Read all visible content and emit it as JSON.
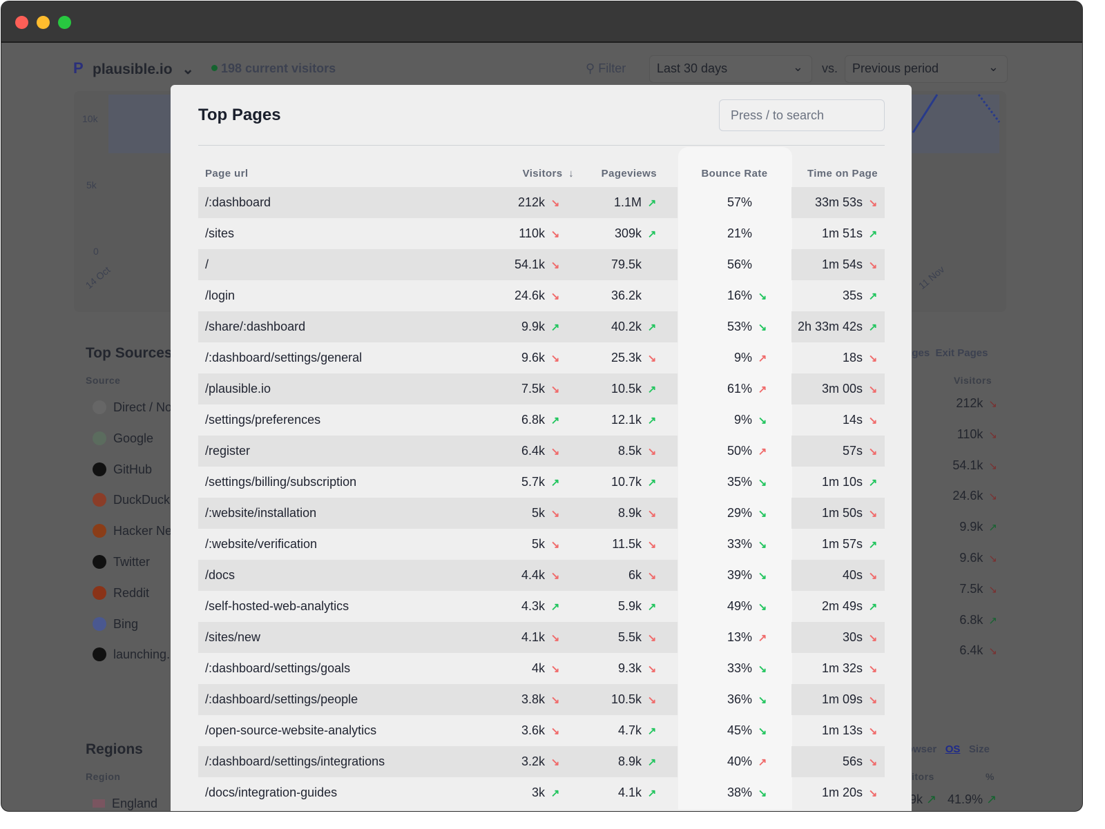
{
  "header": {
    "site": "plausible.io",
    "current_visitors": "198 current visitors",
    "filter": "Filter",
    "period": "Last 30 days",
    "vs": "vs.",
    "comparison": "Previous period"
  },
  "chart": {
    "y_ticks": [
      "10k",
      "5k",
      "0"
    ],
    "x_ticks": [
      "14 Oct",
      "11 Nov"
    ]
  },
  "sources": {
    "title": "Top Sources",
    "col": "Source",
    "items": [
      {
        "label": "Direct / No",
        "icon": "link-icon"
      },
      {
        "label": "Google",
        "icon": "google-icon"
      },
      {
        "label": "GitHub",
        "icon": "github-icon"
      },
      {
        "label": "DuckDuck",
        "icon": "duckduckgo-icon"
      },
      {
        "label": "Hacker Ne",
        "icon": "hacker-news-icon"
      },
      {
        "label": "Twitter",
        "icon": "x-icon"
      },
      {
        "label": "Reddit",
        "icon": "reddit-icon"
      },
      {
        "label": "Bing",
        "icon": "bing-icon"
      },
      {
        "label": "launching.",
        "icon": "launching-icon"
      }
    ]
  },
  "pages": {
    "tabs": [
      "Pages",
      "Exit Pages"
    ],
    "col": "Visitors",
    "values": [
      {
        "v": "212k",
        "t": "down"
      },
      {
        "v": "110k",
        "t": "down"
      },
      {
        "v": "54.1k",
        "t": "down"
      },
      {
        "v": "24.6k",
        "t": "down"
      },
      {
        "v": "9.9k",
        "t": "up"
      },
      {
        "v": "9.6k",
        "t": "down"
      },
      {
        "v": "7.5k",
        "t": "down"
      },
      {
        "v": "6.8k",
        "t": "up"
      },
      {
        "v": "6.4k",
        "t": "down"
      }
    ]
  },
  "regions": {
    "title": "Regions",
    "col": "Region",
    "first": "England",
    "pct_value": "41.9%",
    "visitors_partial": "9k"
  },
  "devices": {
    "tabs": [
      "rowser",
      "OS",
      "Size"
    ],
    "col_visitors": "itors",
    "col_pct": "%"
  },
  "colors": {
    "up_good": "#22c55e",
    "down_bad": "#f06a6a",
    "accent": "#4f46e5"
  },
  "modal": {
    "title": "Top Pages",
    "search_placeholder": "Press / to search",
    "columns": {
      "page": "Page url",
      "visitors": "Visitors",
      "sort_icon": "↓",
      "pageviews": "Pageviews",
      "bounce": "Bounce Rate",
      "time": "Time on Page"
    },
    "rows": [
      [
        "/:dashboard",
        "212k",
        "down-red",
        "1.1M",
        "up-green",
        "57%",
        "none",
        "33m 53s",
        "down-red"
      ],
      [
        "/sites",
        "110k",
        "down-red",
        "309k",
        "up-green",
        "21%",
        "none",
        "1m 51s",
        "up-green"
      ],
      [
        "/",
        "54.1k",
        "down-red",
        "79.5k",
        "none",
        "56%",
        "none",
        "1m 54s",
        "down-red"
      ],
      [
        "/login",
        "24.6k",
        "down-red",
        "36.2k",
        "none",
        "16%",
        "down-green",
        "35s",
        "up-green"
      ],
      [
        "/share/:dashboard",
        "9.9k",
        "up-green",
        "40.2k",
        "up-green",
        "53%",
        "down-green",
        "2h 33m 42s",
        "up-green"
      ],
      [
        "/:dashboard/settings/general",
        "9.6k",
        "down-red",
        "25.3k",
        "down-red",
        "9%",
        "up-red",
        "18s",
        "down-red"
      ],
      [
        "/plausible.io",
        "7.5k",
        "down-red",
        "10.5k",
        "up-green",
        "61%",
        "up-red",
        "3m 00s",
        "down-red"
      ],
      [
        "/settings/preferences",
        "6.8k",
        "up-green",
        "12.1k",
        "up-green",
        "9%",
        "down-green",
        "14s",
        "down-red"
      ],
      [
        "/register",
        "6.4k",
        "down-red",
        "8.5k",
        "down-red",
        "50%",
        "up-red",
        "57s",
        "down-red"
      ],
      [
        "/settings/billing/subscription",
        "5.7k",
        "up-green",
        "10.7k",
        "up-green",
        "35%",
        "down-green",
        "1m 10s",
        "up-green"
      ],
      [
        "/:website/installation",
        "5k",
        "down-red",
        "8.9k",
        "down-red",
        "29%",
        "down-green",
        "1m 50s",
        "down-red"
      ],
      [
        "/:website/verification",
        "5k",
        "down-red",
        "11.5k",
        "down-red",
        "33%",
        "down-green",
        "1m 57s",
        "up-green"
      ],
      [
        "/docs",
        "4.4k",
        "down-red",
        "6k",
        "down-red",
        "39%",
        "down-green",
        "40s",
        "down-red"
      ],
      [
        "/self-hosted-web-analytics",
        "4.3k",
        "up-green",
        "5.9k",
        "up-green",
        "49%",
        "down-green",
        "2m 49s",
        "up-green"
      ],
      [
        "/sites/new",
        "4.1k",
        "down-red",
        "5.5k",
        "down-red",
        "13%",
        "up-red",
        "30s",
        "down-red"
      ],
      [
        "/:dashboard/settings/goals",
        "4k",
        "down-red",
        "9.3k",
        "down-red",
        "33%",
        "down-green",
        "1m 32s",
        "down-red"
      ],
      [
        "/:dashboard/settings/people",
        "3.8k",
        "down-red",
        "10.5k",
        "down-red",
        "36%",
        "down-green",
        "1m 09s",
        "down-red"
      ],
      [
        "/open-source-website-analytics",
        "3.6k",
        "down-red",
        "4.7k",
        "up-green",
        "45%",
        "down-green",
        "1m 13s",
        "down-red"
      ],
      [
        "/:dashboard/settings/integrations",
        "3.2k",
        "down-red",
        "8.9k",
        "up-green",
        "40%",
        "up-red",
        "56s",
        "down-red"
      ],
      [
        "/docs/integration-guides",
        "3k",
        "up-green",
        "4.1k",
        "up-green",
        "38%",
        "down-green",
        "1m 20s",
        "down-red"
      ]
    ]
  }
}
